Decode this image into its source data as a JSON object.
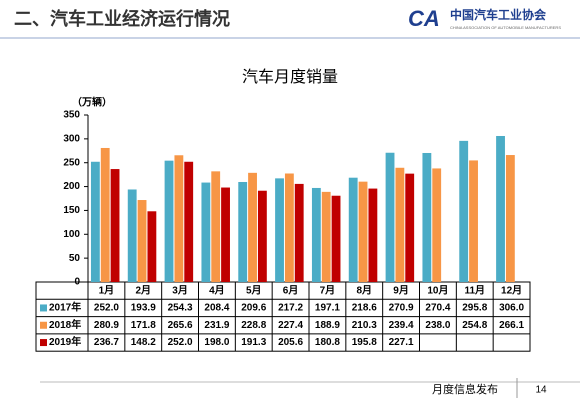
{
  "header": {
    "title": "二、汽车工业经济运行情况",
    "logo": "中国汽车工业协会",
    "logo_en": "CHINA ASSOCIATION OF AUTOMOBILE MANUFACTURERS"
  },
  "footer": {
    "text": "月度信息发布",
    "page": "14"
  },
  "chart_data": {
    "type": "bar",
    "title": "汽车月度销量",
    "y_label": "（万辆）",
    "categories": [
      "1月",
      "2月",
      "3月",
      "4月",
      "5月",
      "6月",
      "7月",
      "8月",
      "9月",
      "10月",
      "11月",
      "12月"
    ],
    "ylim": [
      0,
      350
    ],
    "yticks": [
      0,
      50,
      100,
      150,
      200,
      250,
      300,
      350
    ],
    "series": [
      {
        "name": "2017年",
        "color": "#4bacc6",
        "values": [
          252,
          193.9,
          254.3,
          208.4,
          209.6,
          217.2,
          197.1,
          218.6,
          270.9,
          270.4,
          295.8,
          306
        ],
        "value_labels": [
          "252.0",
          "193.9",
          "254.3",
          "208.4",
          "209.6",
          "217.2",
          "197.1",
          "218.6",
          "270.9",
          "270.4",
          "295.8",
          "306.0"
        ]
      },
      {
        "name": "2018年",
        "color": "#f79646",
        "values": [
          280.9,
          171.8,
          265.6,
          231.9,
          228.8,
          227.4,
          188.9,
          210.3,
          239.4,
          238,
          254.8,
          266.1
        ],
        "value_labels": [
          "280.9",
          "171.8",
          "265.6",
          "231.9",
          "228.8",
          "227.4",
          "188.9",
          "210.3",
          "239.4",
          "238.0",
          "254.8",
          "266.1"
        ]
      },
      {
        "name": "2019年",
        "color": "#c00000",
        "values": [
          236.7,
          148.2,
          252,
          198,
          191.3,
          205.6,
          180.8,
          195.8,
          227.1,
          null,
          null,
          null
        ],
        "value_labels": [
          "236.7",
          "148.2",
          "252.0",
          "198.0",
          "191.3",
          "205.6",
          "180.8",
          "195.8",
          "227.1",
          null,
          null,
          null
        ]
      }
    ]
  }
}
